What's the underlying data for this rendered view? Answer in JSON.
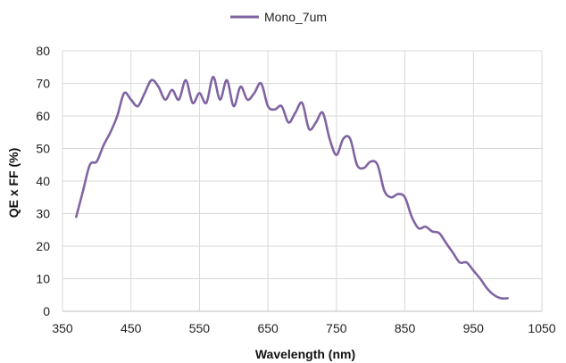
{
  "chart_data": {
    "type": "line",
    "title": "",
    "xlabel": "Wavelength (nm)",
    "ylabel": "QE x FF (%)",
    "xlim": [
      350,
      1050
    ],
    "ylim": [
      0,
      80
    ],
    "x_ticks": [
      350,
      450,
      550,
      650,
      750,
      850,
      950,
      1050
    ],
    "y_ticks": [
      0,
      10,
      20,
      30,
      40,
      50,
      60,
      70,
      80
    ],
    "grid": "both",
    "legend_position": "top-center",
    "series": [
      {
        "name": "Mono_7um",
        "color": "#8064a2",
        "points": [
          [
            370,
            29
          ],
          [
            380,
            37
          ],
          [
            390,
            45
          ],
          [
            400,
            46
          ],
          [
            410,
            51
          ],
          [
            420,
            55
          ],
          [
            430,
            60
          ],
          [
            440,
            67
          ],
          [
            450,
            65
          ],
          [
            460,
            63
          ],
          [
            470,
            67
          ],
          [
            480,
            71
          ],
          [
            490,
            69
          ],
          [
            500,
            65
          ],
          [
            510,
            68
          ],
          [
            520,
            65
          ],
          [
            530,
            71
          ],
          [
            540,
            64
          ],
          [
            550,
            67
          ],
          [
            560,
            64
          ],
          [
            570,
            72
          ],
          [
            580,
            65
          ],
          [
            590,
            71
          ],
          [
            600,
            63
          ],
          [
            610,
            69
          ],
          [
            620,
            65
          ],
          [
            630,
            67
          ],
          [
            640,
            70
          ],
          [
            650,
            63
          ],
          [
            660,
            62
          ],
          [
            670,
            63
          ],
          [
            680,
            58
          ],
          [
            690,
            61
          ],
          [
            700,
            64
          ],
          [
            710,
            56
          ],
          [
            720,
            58
          ],
          [
            730,
            61
          ],
          [
            740,
            53
          ],
          [
            750,
            48
          ],
          [
            760,
            53
          ],
          [
            770,
            53
          ],
          [
            780,
            45
          ],
          [
            790,
            44
          ],
          [
            800,
            46
          ],
          [
            810,
            45
          ],
          [
            820,
            37
          ],
          [
            830,
            35
          ],
          [
            840,
            36
          ],
          [
            850,
            35
          ],
          [
            860,
            29
          ],
          [
            870,
            25.5
          ],
          [
            880,
            26
          ],
          [
            890,
            24.5
          ],
          [
            900,
            24
          ],
          [
            910,
            21
          ],
          [
            920,
            18
          ],
          [
            930,
            15
          ],
          [
            940,
            15
          ],
          [
            950,
            12.5
          ],
          [
            960,
            10
          ],
          [
            970,
            7
          ],
          [
            980,
            5
          ],
          [
            990,
            4
          ],
          [
            1000,
            4
          ]
        ]
      }
    ]
  }
}
